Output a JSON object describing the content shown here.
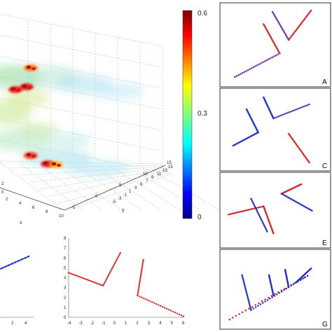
{
  "chart_data": [
    {
      "type": "heatmap",
      "kind": "3d-volume",
      "xlabel": "x",
      "ylabel": "y",
      "x_ticks": [
        "2",
        "4",
        "6",
        "8",
        "10"
      ],
      "y_ticks": [
        "-5",
        "0",
        "5",
        "10",
        "15"
      ],
      "y_side_ticks": [
        "15",
        "13",
        "11",
        "9",
        "7",
        "5",
        "3",
        "1",
        "-1",
        "-3",
        "-5"
      ],
      "z_extra_ticks": [
        "0",
        "2"
      ],
      "colorbar": {
        "ticks": [
          "0.6",
          "0.3",
          "0"
        ],
        "range": [
          0,
          0.6
        ],
        "colormap": "jet"
      },
      "hotspots": [
        {
          "x": 2.5,
          "y": 2,
          "v": 0.58
        },
        {
          "x": 3.5,
          "y": 1,
          "v": 0.6
        },
        {
          "x": 4.2,
          "y": 4,
          "v": 0.5
        },
        {
          "x": 6.5,
          "y": 8,
          "v": 0.55
        },
        {
          "x": 7.5,
          "y": 9,
          "v": 0.6
        },
        {
          "x": 8.2,
          "y": 11,
          "v": 0.45
        }
      ]
    },
    {
      "type": "scatter",
      "panel": "bottom-left",
      "x_ticks": [
        "2",
        "4"
      ],
      "series": [
        {
          "color": "#2233cc",
          "points": [
            [
              0,
              -1
            ],
            [
              0.5,
              -0.7
            ],
            [
              1,
              -0.4
            ],
            [
              1.5,
              -0.1
            ],
            [
              2,
              0.2
            ],
            [
              2.5,
              0.5
            ],
            [
              3,
              0.8
            ],
            [
              3.5,
              1.1
            ],
            [
              4,
              1.4
            ],
            [
              4.5,
              1.7
            ]
          ]
        }
      ]
    },
    {
      "type": "scatter",
      "panel": "bottom-right",
      "x_ticks": [
        "-4",
        "-3",
        "-2",
        "-1",
        "0",
        "1",
        "2",
        "3",
        "4",
        "5",
        "6"
      ],
      "y_ticks": [
        "0",
        "1",
        "2",
        "3",
        "4",
        "5",
        "6",
        "7",
        "8"
      ],
      "xlim": [
        -4,
        6
      ],
      "ylim": [
        0,
        8
      ],
      "series": [
        {
          "color": "#dd2222",
          "points": [
            [
              -4,
              4.5
            ],
            [
              -1,
              3.2
            ],
            [
              0.5,
              6.5
            ],
            [
              2,
              2.2
            ],
            [
              2.5,
              6
            ],
            [
              6,
              0.1
            ]
          ],
          "segments": [
            [
              [
                -4,
                4.5
              ],
              [
                -1,
                3.2
              ]
            ],
            [
              [
                -1,
                3.2
              ],
              [
                0.5,
                6.5
              ]
            ],
            [
              [
                2.5,
                5.8
              ],
              [
                2,
                2.2
              ]
            ],
            [
              [
                2,
                2.2
              ],
              [
                6,
                0.1
              ]
            ]
          ]
        }
      ]
    }
  ],
  "panels": {
    "A": {
      "label": "A",
      "lines": [
        {
          "color": "#dd2222",
          "pts": [
            [
              0.12,
              0.96
            ],
            [
              0.62,
              0.63
            ],
            [
              0.44,
              0.22
            ]
          ]
        },
        {
          "color": "#6a3fb0",
          "pts": [
            [
              0.12,
              0.96
            ],
            [
              0.62,
              0.63
            ]
          ]
        },
        {
          "color": "#dd2222",
          "pts": [
            [
              0.72,
              0.44
            ],
            [
              0.97,
              0.03
            ]
          ]
        },
        {
          "color": "#6a3fb0",
          "pts": [
            [
              0.72,
              0.44
            ],
            [
              0.54,
              0.05
            ]
          ]
        }
      ]
    },
    "C": {
      "label": "C",
      "lines": [
        {
          "color": "#2233cc",
          "pts": [
            [
              0.1,
              0.74
            ],
            [
              0.38,
              0.55
            ],
            [
              0.25,
              0.22
            ]
          ]
        },
        {
          "color": "#6a3fb0",
          "pts": [
            [
              0.55,
              0.35
            ],
            [
              0.95,
              0.15
            ]
          ]
        },
        {
          "color": "#2233cc",
          "pts": [
            [
              0.55,
              0.35
            ],
            [
              0.44,
              0.05
            ]
          ]
        },
        {
          "color": "#dd2222",
          "pts": [
            [
              0.72,
              0.57
            ],
            [
              0.95,
              0.98
            ]
          ]
        }
      ]
    },
    "E": {
      "label": "E",
      "lines": [
        {
          "color": "#dd2222",
          "pts": [
            [
              0.05,
              0.58
            ],
            [
              0.44,
              0.45
            ],
            [
              0.55,
              0.88
            ]
          ]
        },
        {
          "color": "#2233cc",
          "pts": [
            [
              0.3,
              0.33
            ],
            [
              0.48,
              0.85
            ]
          ]
        },
        {
          "color": "#dd2222",
          "pts": [
            [
              0.64,
              0.25
            ],
            [
              0.86,
              0.1
            ]
          ]
        },
        {
          "color": "#2233cc",
          "pts": [
            [
              0.64,
              0.25
            ],
            [
              0.98,
              0.52
            ]
          ]
        }
      ]
    },
    "G": {
      "label": "G",
      "lines": [
        {
          "color": "#dd2222",
          "pts": [
            [
              0.06,
              0.96
            ],
            [
              0.93,
              0.31
            ]
          ]
        },
        {
          "color": "#2233cc",
          "pts": [
            [
              0.3,
              0.82
            ],
            [
              0.93,
              0.31
            ]
          ]
        },
        {
          "color": "#2233cc",
          "pts": [
            [
              0.3,
              0.82
            ],
            [
              0.2,
              0.3
            ]
          ]
        },
        {
          "color": "#2233cc",
          "pts": [
            [
              0.55,
              0.6
            ],
            [
              0.5,
              0.3
            ]
          ]
        },
        {
          "color": "#2233cc",
          "pts": [
            [
              0.72,
              0.48
            ],
            [
              0.68,
              0.22
            ]
          ]
        },
        {
          "color": "#2233cc",
          "pts": [
            [
              0.8,
              0.41
            ],
            [
              0.97,
              0.2
            ]
          ]
        }
      ]
    }
  }
}
